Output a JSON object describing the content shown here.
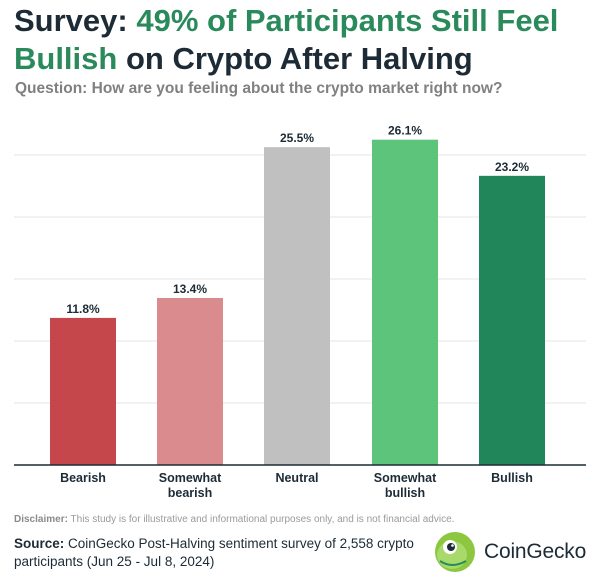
{
  "title_part1": "Survey: ",
  "title_part2": "49% of Participants Still Feel Bullish",
  "title_part3": " on Crypto After Halving",
  "subtitle": "Question: How are you feeling about the crypto market right now?",
  "disclaimer_label": "Disclaimer:",
  "disclaimer_text": " This study is for illustrative and informational purposes only, and is not financial advice.",
  "source_label": "Source:",
  "source_text": " CoinGecko Post-Halving sentiment survey of 2,558 crypto participants (Jun 25 - Jul 8, 2024)",
  "brand": "CoinGecko",
  "colors": {
    "title_dark": "#1c2b36",
    "title_accent": "#2a8a5b"
  },
  "chart_data": {
    "type": "bar",
    "categories": [
      "Bearish",
      "Somewhat bearish",
      "Neutral",
      "Somewhat bullish",
      "Bullish"
    ],
    "category_lines": [
      [
        "Bearish"
      ],
      [
        "Somewhat",
        "bearish"
      ],
      [
        "Neutral"
      ],
      [
        "Somewhat",
        "bullish"
      ],
      [
        "Bullish"
      ]
    ],
    "values": [
      11.8,
      13.4,
      25.5,
      26.1,
      23.2
    ],
    "value_labels": [
      "11.8%",
      "13.4%",
      "25.5%",
      "26.1%",
      "23.2%"
    ],
    "bar_colors": [
      "#c5474c",
      "#d98b8e",
      "#c0c0c0",
      "#5dc47b",
      "#21875a"
    ],
    "ylim": [
      0,
      28
    ],
    "grid": true,
    "legend": "none"
  }
}
